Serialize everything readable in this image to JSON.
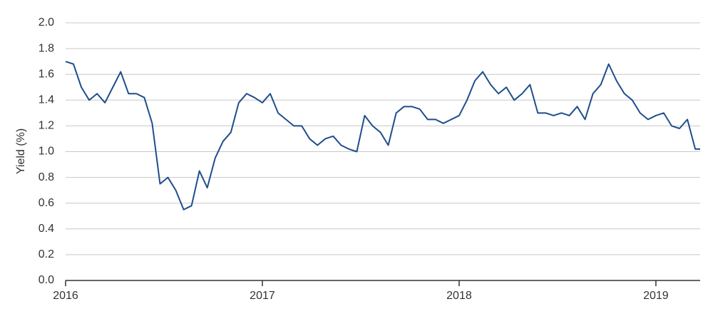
{
  "chart_data": {
    "type": "line",
    "y_label": "Yield (%)",
    "x": [
      2016.0,
      2016.04,
      2016.08,
      2016.12,
      2016.16,
      2016.2,
      2016.24,
      2016.28,
      2016.32,
      2016.36,
      2016.4,
      2016.44,
      2016.48,
      2016.52,
      2016.56,
      2016.6,
      2016.64,
      2016.68,
      2016.72,
      2016.76,
      2016.8,
      2016.84,
      2016.88,
      2016.92,
      2016.96,
      2017.0,
      2017.04,
      2017.08,
      2017.12,
      2017.16,
      2017.2,
      2017.24,
      2017.28,
      2017.32,
      2017.36,
      2017.4,
      2017.44,
      2017.48,
      2017.52,
      2017.56,
      2017.6,
      2017.64,
      2017.68,
      2017.72,
      2017.76,
      2017.8,
      2017.84,
      2017.88,
      2017.92,
      2017.96,
      2018.0,
      2018.04,
      2018.08,
      2018.12,
      2018.16,
      2018.2,
      2018.24,
      2018.28,
      2018.32,
      2018.36,
      2018.4,
      2018.44,
      2018.48,
      2018.52,
      2018.56,
      2018.6,
      2018.64,
      2018.68,
      2018.72,
      2018.76,
      2018.8,
      2018.84,
      2018.88,
      2018.92,
      2018.96,
      2019.0,
      2019.04,
      2019.08,
      2019.12,
      2019.16,
      2019.2,
      2019.225
    ],
    "series": [
      {
        "color": "#1f4e8c",
        "values": [
          1.7,
          1.68,
          1.5,
          1.4,
          1.45,
          1.38,
          1.5,
          1.62,
          1.45,
          1.45,
          1.42,
          1.22,
          0.75,
          0.8,
          0.7,
          0.55,
          0.58,
          0.85,
          0.72,
          0.95,
          1.08,
          1.15,
          1.38,
          1.45,
          1.42,
          1.38,
          1.45,
          1.3,
          1.25,
          1.2,
          1.2,
          1.1,
          1.05,
          1.1,
          1.12,
          1.05,
          1.02,
          1.0,
          1.28,
          1.2,
          1.15,
          1.05,
          1.3,
          1.35,
          1.35,
          1.33,
          1.25,
          1.25,
          1.22,
          1.25,
          1.28,
          1.4,
          1.55,
          1.62,
          1.52,
          1.45,
          1.5,
          1.4,
          1.45,
          1.52,
          1.3,
          1.3,
          1.28,
          1.3,
          1.28,
          1.35,
          1.25,
          1.45,
          1.52,
          1.68,
          1.55,
          1.45,
          1.4,
          1.3,
          1.25,
          1.28,
          1.3,
          1.2,
          1.18,
          1.25,
          1.02,
          1.02
        ]
      }
    ],
    "xlim": [
      2016,
      2019.225
    ],
    "xticks": [
      2016,
      2017,
      2018,
      2019
    ],
    "ylim": [
      0,
      2
    ],
    "yticks": [
      {
        "value": 0,
        "label": "0.0"
      },
      0.2,
      0.4,
      0.6,
      0.8,
      {
        "value": 1,
        "label": "1.0"
      },
      1.2,
      1.4,
      1.6,
      1.8,
      {
        "value": 2,
        "label": "2.0"
      }
    ],
    "grid": true
  }
}
